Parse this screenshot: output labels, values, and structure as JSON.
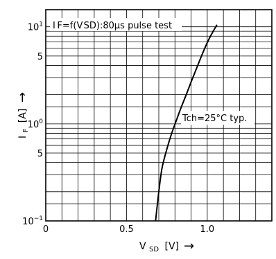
{
  "chart_data": {
    "type": "line",
    "title": "",
    "annotation_top": "I F=f(V SD):80µs pulse test",
    "annotation_curve": "Tch=25°C typ.",
    "xlabel": {
      "main": "V",
      "sub": "SD",
      "unit": "[V]"
    },
    "ylabel": {
      "main": "I",
      "sub": "F",
      "unit": "[A]"
    },
    "arrow_glyph": "→",
    "x_scale": "linear",
    "y_scale": "log",
    "xlim": [
      0,
      1.4
    ],
    "ylim": [
      0.1,
      15
    ],
    "grid": true,
    "x_ticks": [
      {
        "value": 0,
        "label": "0"
      },
      {
        "value": 0.5,
        "label": "0.5"
      },
      {
        "value": 1.0,
        "label": "1.0"
      }
    ],
    "y_ticks": [
      {
        "value": 0.1,
        "base": "10",
        "exp": "−1"
      },
      {
        "value": 0.5,
        "base": "5",
        "exp": ""
      },
      {
        "value": 1,
        "base": "10",
        "exp": "0"
      },
      {
        "value": 5,
        "base": "5",
        "exp": ""
      },
      {
        "value": 10,
        "base": "10",
        "exp": "1"
      }
    ],
    "series": [
      {
        "x": [
          0.68,
          0.7,
          0.72,
          0.75,
          0.78,
          0.81,
          0.84,
          0.87,
          0.9,
          0.93,
          0.96,
          0.99,
          1.02,
          1.06
        ],
        "y": [
          0.1,
          0.2,
          0.35,
          0.55,
          0.8,
          1.1,
          1.5,
          2.0,
          2.7,
          3.6,
          4.8,
          6.3,
          8.0,
          10.5
        ]
      }
    ]
  }
}
